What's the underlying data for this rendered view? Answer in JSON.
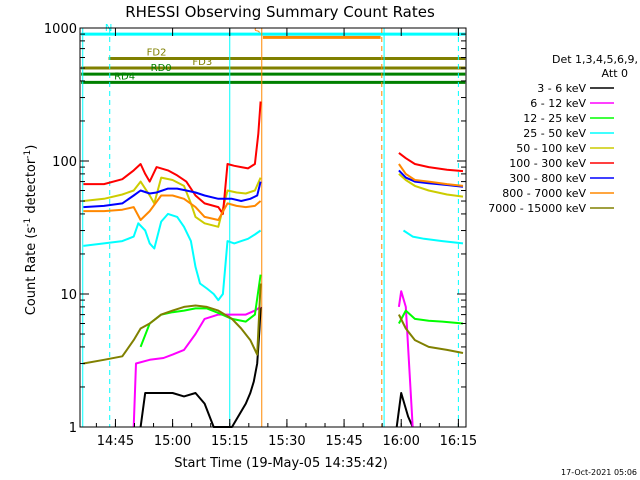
{
  "chart_data": {
    "type": "line",
    "title": "RHESSI Observing Summary Count Rates",
    "xlabel": "Start Time (19-May-05 14:35:42)",
    "ylabel_main": "Count Rate (s",
    "ylabel_sup1": "-1",
    "ylabel_mid": " detector",
    "ylabel_sup2": "-1",
    "ylabel_end": ")",
    "y_scale": "log",
    "ylim": [
      1,
      1000
    ],
    "xlim": [
      14.595,
      16.2833
    ],
    "x_ticks": [
      {
        "v": 14.75,
        "label": "14:45"
      },
      {
        "v": 15.0,
        "label": "15:00"
      },
      {
        "v": 15.25,
        "label": "15:15"
      },
      {
        "v": 15.5,
        "label": "15:30"
      },
      {
        "v": 15.75,
        "label": "15:45"
      },
      {
        "v": 16.0,
        "label": "16:00"
      },
      {
        "v": 16.25,
        "label": "16:15"
      }
    ],
    "y_ticks": [
      {
        "v": 1,
        "label": "1"
      },
      {
        "v": 10,
        "label": "10"
      },
      {
        "v": 100,
        "label": "100"
      },
      {
        "v": 1000,
        "label": "1000"
      }
    ],
    "legend": {
      "position": "right",
      "header1": "Det 1,3,4,5,6,9,",
      "header2": "Att 0"
    },
    "footer_date": "17-Oct-2021 05:06",
    "series": [
      {
        "name": "3 - 6 keV",
        "color": "#000000",
        "points": [
          [
            14.86,
            1.0
          ],
          [
            14.88,
            1.8
          ],
          [
            14.92,
            1.8
          ],
          [
            14.96,
            1.8
          ],
          [
            15.0,
            1.8
          ],
          [
            15.05,
            1.7
          ],
          [
            15.1,
            1.8
          ],
          [
            15.14,
            1.5
          ],
          [
            15.18,
            1.0
          ],
          [
            15.26,
            1.0
          ],
          [
            15.32,
            1.5
          ],
          [
            15.34,
            1.8
          ],
          [
            15.355,
            2.2
          ],
          [
            15.37,
            3.0
          ],
          [
            15.38,
            5.5
          ],
          [
            15.385,
            8.0
          ],
          null,
          [
            15.98,
            1.0
          ],
          [
            16.0,
            1.8
          ],
          [
            16.03,
            1.2
          ],
          [
            16.05,
            1.0
          ]
        ]
      },
      {
        "name": "6 - 12 keV",
        "color": "#ff00ff",
        "points": [
          [
            14.83,
            1.0
          ],
          [
            14.84,
            3.0
          ],
          [
            14.9,
            3.2
          ],
          [
            14.96,
            3.3
          ],
          [
            15.0,
            3.5
          ],
          [
            15.05,
            3.8
          ],
          [
            15.1,
            5.0
          ],
          [
            15.14,
            6.5
          ],
          [
            15.2,
            7.0
          ],
          [
            15.26,
            7.0
          ],
          [
            15.32,
            7.0
          ],
          [
            15.36,
            7.5
          ],
          [
            15.385,
            8.0
          ],
          null,
          [
            15.99,
            8.0
          ],
          [
            16.0,
            10.5
          ],
          [
            16.02,
            8.0
          ],
          [
            16.04,
            2.0
          ],
          [
            16.05,
            1.0
          ]
        ]
      },
      {
        "name": "12 - 25 keV",
        "color": "#00ff00",
        "points": [
          [
            14.86,
            4.0
          ],
          [
            14.9,
            6.0
          ],
          [
            14.95,
            7.0
          ],
          [
            15.0,
            7.3
          ],
          [
            15.05,
            7.5
          ],
          [
            15.1,
            7.8
          ],
          [
            15.15,
            7.8
          ],
          [
            15.2,
            7.2
          ],
          [
            15.26,
            6.5
          ],
          [
            15.32,
            6.2
          ],
          [
            15.36,
            7.0
          ],
          [
            15.385,
            14.0
          ],
          null,
          [
            15.99,
            6.0
          ],
          [
            16.02,
            7.5
          ],
          [
            16.06,
            6.5
          ],
          [
            16.12,
            6.3
          ],
          [
            16.18,
            6.2
          ],
          [
            16.27,
            6.0
          ]
        ]
      },
      {
        "name": "25 - 50 keV",
        "color": "#00ffff",
        "points": [
          [
            14.61,
            23.0
          ],
          [
            14.7,
            24.0
          ],
          [
            14.78,
            25.0
          ],
          [
            14.83,
            27.0
          ],
          [
            14.85,
            34.0
          ],
          [
            14.88,
            30.0
          ],
          [
            14.9,
            24.0
          ],
          [
            14.92,
            22.0
          ],
          [
            14.95,
            35.0
          ],
          [
            14.98,
            40.0
          ],
          [
            15.02,
            38.0
          ],
          [
            15.05,
            32.0
          ],
          [
            15.08,
            25.0
          ],
          [
            15.1,
            16.0
          ],
          [
            15.12,
            12.0
          ],
          [
            15.15,
            11.0
          ],
          [
            15.18,
            10.0
          ],
          [
            15.2,
            9.0
          ],
          [
            15.22,
            10.0
          ],
          [
            15.24,
            25.0
          ],
          [
            15.27,
            24.0
          ],
          [
            15.3,
            25.0
          ],
          [
            15.33,
            26.0
          ],
          [
            15.36,
            28.0
          ],
          [
            15.385,
            30.0
          ],
          null,
          [
            16.01,
            30.0
          ],
          [
            16.05,
            27.0
          ],
          [
            16.1,
            26.0
          ],
          [
            16.18,
            25.0
          ],
          [
            16.27,
            24.0
          ]
        ]
      },
      {
        "name": "50 - 100 keV",
        "color": "#cccc00",
        "points": [
          [
            14.61,
            50.0
          ],
          [
            14.7,
            52.0
          ],
          [
            14.78,
            56.0
          ],
          [
            14.83,
            60.0
          ],
          [
            14.86,
            70.0
          ],
          [
            14.9,
            55.0
          ],
          [
            14.92,
            48.0
          ],
          [
            14.95,
            75.0
          ],
          [
            15.0,
            72.0
          ],
          [
            15.05,
            65.0
          ],
          [
            15.08,
            48.0
          ],
          [
            15.1,
            38.0
          ],
          [
            15.14,
            34.0
          ],
          [
            15.2,
            32.0
          ],
          [
            15.24,
            60.0
          ],
          [
            15.28,
            58.0
          ],
          [
            15.32,
            57.0
          ],
          [
            15.36,
            60.0
          ],
          [
            15.385,
            75.0
          ],
          null,
          [
            15.99,
            80.0
          ],
          [
            16.02,
            72.0
          ],
          [
            16.06,
            65.0
          ],
          [
            16.12,
            60.0
          ],
          [
            16.2,
            56.0
          ],
          [
            16.27,
            54.0
          ]
        ]
      },
      {
        "name": "100 - 300 keV",
        "color": "#ff0000",
        "points": [
          [
            14.61,
            67.0
          ],
          [
            14.7,
            67.0
          ],
          [
            14.78,
            73.0
          ],
          [
            14.83,
            85.0
          ],
          [
            14.86,
            95.0
          ],
          [
            14.88,
            80.0
          ],
          [
            14.9,
            70.0
          ],
          [
            14.93,
            90.0
          ],
          [
            14.98,
            85.0
          ],
          [
            15.02,
            78.0
          ],
          [
            15.06,
            70.0
          ],
          [
            15.1,
            55.0
          ],
          [
            15.14,
            48.0
          ],
          [
            15.2,
            45.0
          ],
          [
            15.22,
            40.0
          ],
          [
            15.24,
            95.0
          ],
          [
            15.27,
            92.0
          ],
          [
            15.3,
            90.0
          ],
          [
            15.33,
            88.0
          ],
          [
            15.36,
            95.0
          ],
          [
            15.375,
            160.0
          ],
          [
            15.385,
            280.0
          ],
          null,
          [
            15.99,
            115.0
          ],
          [
            16.02,
            105.0
          ],
          [
            16.06,
            95.0
          ],
          [
            16.12,
            90.0
          ],
          [
            16.2,
            86.0
          ],
          [
            16.27,
            84.0
          ]
        ]
      },
      {
        "name": "300 - 800 keV",
        "color": "#0000ff",
        "points": [
          [
            14.61,
            45.0
          ],
          [
            14.7,
            46.0
          ],
          [
            14.78,
            48.0
          ],
          [
            14.83,
            55.0
          ],
          [
            14.86,
            60.0
          ],
          [
            14.9,
            57.0
          ],
          [
            14.93,
            58.0
          ],
          [
            14.98,
            62.0
          ],
          [
            15.02,
            62.0
          ],
          [
            15.06,
            60.0
          ],
          [
            15.1,
            58.0
          ],
          [
            15.14,
            55.0
          ],
          [
            15.2,
            52.0
          ],
          [
            15.26,
            52.0
          ],
          [
            15.3,
            50.0
          ],
          [
            15.34,
            52.0
          ],
          [
            15.37,
            55.0
          ],
          [
            15.385,
            70.0
          ],
          null,
          [
            15.99,
            85.0
          ],
          [
            16.02,
            75.0
          ],
          [
            16.06,
            70.0
          ],
          [
            16.12,
            68.0
          ],
          [
            16.2,
            66.0
          ],
          [
            16.27,
            64.0
          ]
        ]
      },
      {
        "name": "800 - 7000 keV",
        "color": "#ff8800",
        "points": [
          [
            14.61,
            42.0
          ],
          [
            14.7,
            42.0
          ],
          [
            14.78,
            43.0
          ],
          [
            14.83,
            45.0
          ],
          [
            14.86,
            36.0
          ],
          [
            14.9,
            42.0
          ],
          [
            14.95,
            55.0
          ],
          [
            15.0,
            55.0
          ],
          [
            15.05,
            52.0
          ],
          [
            15.1,
            45.0
          ],
          [
            15.14,
            38.0
          ],
          [
            15.2,
            36.0
          ],
          [
            15.24,
            48.0
          ],
          [
            15.28,
            46.0
          ],
          [
            15.32,
            45.0
          ],
          [
            15.36,
            46.0
          ],
          [
            15.385,
            50.0
          ],
          null,
          [
            15.99,
            95.0
          ],
          [
            16.02,
            80.0
          ],
          [
            16.06,
            72.0
          ],
          [
            16.12,
            70.0
          ],
          [
            16.2,
            67.0
          ],
          [
            16.27,
            65.0
          ]
        ]
      },
      {
        "name": "7000 - 15000 keV",
        "color": "#808000",
        "points": [
          [
            14.61,
            3.0
          ],
          [
            14.7,
            3.2
          ],
          [
            14.78,
            3.4
          ],
          [
            14.83,
            4.5
          ],
          [
            14.86,
            5.5
          ],
          [
            14.9,
            6.0
          ],
          [
            14.95,
            7.0
          ],
          [
            15.0,
            7.5
          ],
          [
            15.05,
            8.0
          ],
          [
            15.1,
            8.2
          ],
          [
            15.15,
            8.0
          ],
          [
            15.2,
            7.5
          ],
          [
            15.26,
            6.5
          ],
          [
            15.3,
            5.5
          ],
          [
            15.34,
            4.5
          ],
          [
            15.37,
            3.5
          ],
          [
            15.385,
            12.0
          ],
          null,
          [
            15.99,
            7.0
          ],
          [
            16.02,
            5.5
          ],
          [
            16.06,
            4.5
          ],
          [
            16.12,
            4.0
          ],
          [
            16.2,
            3.8
          ],
          [
            16.27,
            3.6
          ]
        ]
      }
    ],
    "flags": [
      {
        "label": "S",
        "color": "#ff8800",
        "y": 850,
        "x1": 15.395,
        "x2": 15.91,
        "label_x": 15.37
      },
      {
        "label": "FD2",
        "color": "#808000",
        "y": 590,
        "x1": 14.72,
        "x2": 16.28,
        "label_x": 14.93
      },
      {
        "label": "FD3",
        "color": "#808000",
        "y": 500,
        "x1": 14.6,
        "x2": 16.28,
        "label_x": 15.13
      },
      {
        "label": "RD0",
        "color": "#008000",
        "y": 450,
        "x1": 14.6,
        "x2": 16.28,
        "label_x": 14.95
      },
      {
        "label": "RD4",
        "color": "#008000",
        "y": 390,
        "x1": 14.6,
        "x2": 16.28,
        "label_x": 14.79
      },
      {
        "label": "N",
        "color": "#00ffff",
        "y": 900,
        "x1": 14.6,
        "x2": 16.28,
        "label_x": 14.72
      }
    ],
    "vlines": [
      {
        "x": 14.607,
        "color": "#00ffff",
        "dash": false
      },
      {
        "x": 14.725,
        "color": "#00ffff",
        "dash": true
      },
      {
        "x": 15.25,
        "color": "#00ffff",
        "dash": false
      },
      {
        "x": 15.39,
        "color": "#ff8800",
        "dash": false
      },
      {
        "x": 15.915,
        "color": "#ff8800",
        "dash": true
      },
      {
        "x": 15.925,
        "color": "#00ffff",
        "dash": false
      },
      {
        "x": 16.25,
        "color": "#00ffff",
        "dash": true
      }
    ]
  }
}
